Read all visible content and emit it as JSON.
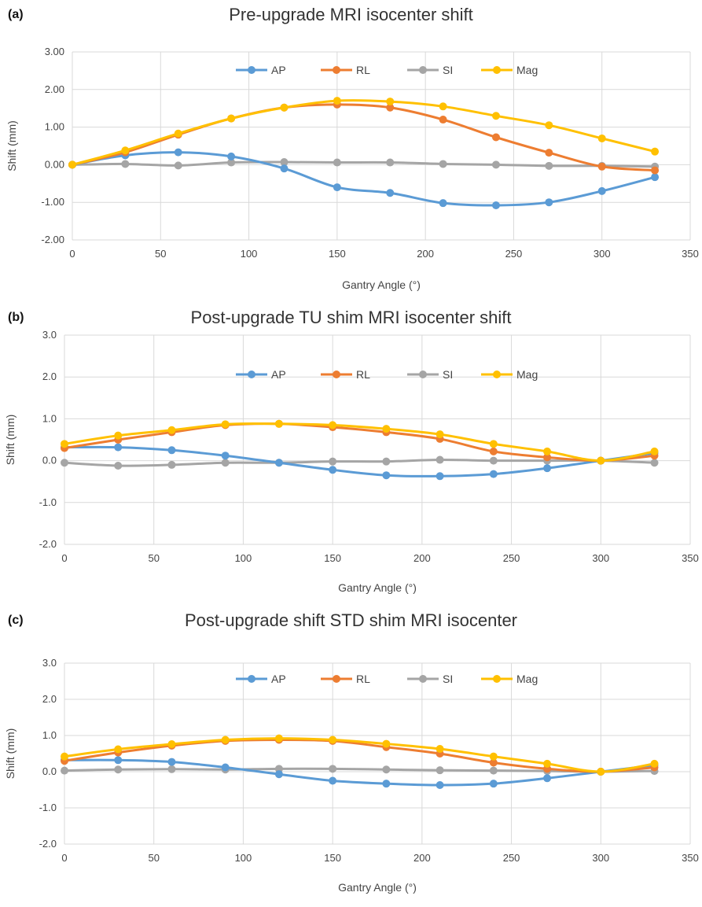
{
  "chart_data": [
    {
      "panel_label": "(a)",
      "type": "line",
      "title": "Pre-upgrade MRI isocenter shift",
      "xlabel": "Gantry Angle (°)",
      "ylabel": "Shift (mm)",
      "xlim": [
        0,
        350
      ],
      "ylim": [
        -2,
        3
      ],
      "xticks": [
        0,
        50,
        100,
        150,
        200,
        250,
        300,
        350
      ],
      "yticks": [
        -2,
        -1,
        0,
        1,
        2,
        3
      ],
      "ytick_labels": [
        "-2.00",
        "-1.00",
        "0.00",
        "1.00",
        "2.00",
        "3.00"
      ],
      "grid": true,
      "legend_position": "top",
      "x": [
        0,
        30,
        60,
        90,
        120,
        150,
        180,
        210,
        240,
        270,
        300,
        330
      ],
      "series": [
        {
          "name": "AP",
          "color": "#5B9BD5",
          "values": [
            0.0,
            0.25,
            0.33,
            0.22,
            -0.1,
            -0.6,
            -0.75,
            -1.02,
            -1.08,
            -1.0,
            -0.7,
            -0.33
          ]
        },
        {
          "name": "RL",
          "color": "#ED7D31",
          "values": [
            0.0,
            0.33,
            0.8,
            1.23,
            1.52,
            1.6,
            1.52,
            1.2,
            0.73,
            0.32,
            -0.05,
            -0.15
          ]
        },
        {
          "name": "SI",
          "color": "#A5A5A5",
          "values": [
            0.0,
            0.02,
            -0.02,
            0.06,
            0.07,
            0.06,
            0.06,
            0.02,
            0.0,
            -0.03,
            -0.03,
            -0.05
          ]
        },
        {
          "name": "Mag",
          "color": "#FFC000",
          "values": [
            0.0,
            0.38,
            0.83,
            1.23,
            1.52,
            1.7,
            1.68,
            1.55,
            1.3,
            1.05,
            0.7,
            0.35
          ]
        }
      ]
    },
    {
      "panel_label": "(b)",
      "type": "line",
      "title": "Post-upgrade TU shim MRI isocenter shift",
      "xlabel": "Gantry Angle (°)",
      "ylabel": "Shift (mm)",
      "xlim": [
        0,
        350
      ],
      "ylim": [
        -2,
        3
      ],
      "xticks": [
        0,
        50,
        100,
        150,
        200,
        250,
        300,
        350
      ],
      "yticks": [
        -2,
        -1,
        0,
        1,
        2,
        3
      ],
      "ytick_labels": [
        "-2.0",
        "-1.0",
        "0.0",
        "1.0",
        "2.0",
        "3.0"
      ],
      "grid": true,
      "legend_position": "top",
      "x": [
        0,
        30,
        60,
        90,
        120,
        150,
        180,
        210,
        240,
        270,
        300,
        330
      ],
      "series": [
        {
          "name": "AP",
          "color": "#5B9BD5",
          "values": [
            0.32,
            0.32,
            0.25,
            0.12,
            -0.05,
            -0.22,
            -0.35,
            -0.37,
            -0.32,
            -0.18,
            0.0,
            0.18
          ]
        },
        {
          "name": "RL",
          "color": "#ED7D31",
          "values": [
            0.3,
            0.5,
            0.68,
            0.85,
            0.88,
            0.8,
            0.68,
            0.52,
            0.22,
            0.08,
            0.0,
            0.12
          ]
        },
        {
          "name": "SI",
          "color": "#A5A5A5",
          "values": [
            -0.05,
            -0.12,
            -0.1,
            -0.05,
            -0.05,
            -0.02,
            -0.02,
            0.02,
            0.0,
            0.0,
            0.0,
            -0.05
          ]
        },
        {
          "name": "Mag",
          "color": "#FFC000",
          "values": [
            0.4,
            0.6,
            0.73,
            0.87,
            0.88,
            0.85,
            0.76,
            0.63,
            0.4,
            0.22,
            0.0,
            0.22
          ]
        }
      ]
    },
    {
      "panel_label": "(c)",
      "type": "line",
      "title": "Post-upgrade shift STD shim MRI isocenter",
      "xlabel": "Gantry Angle (°)",
      "ylabel": "Shift (mm)",
      "xlim": [
        0,
        350
      ],
      "ylim": [
        -2,
        3
      ],
      "xticks": [
        0,
        50,
        100,
        150,
        200,
        250,
        300,
        350
      ],
      "yticks": [
        -2,
        -1,
        0,
        1,
        2,
        3
      ],
      "ytick_labels": [
        "-2.0",
        "-1.0",
        "0.0",
        "1.0",
        "2.0",
        "3.0"
      ],
      "grid": true,
      "legend_position": "top",
      "x": [
        0,
        30,
        60,
        90,
        120,
        150,
        180,
        210,
        240,
        270,
        300,
        330
      ],
      "series": [
        {
          "name": "AP",
          "color": "#5B9BD5",
          "values": [
            0.32,
            0.32,
            0.27,
            0.12,
            -0.07,
            -0.25,
            -0.33,
            -0.37,
            -0.33,
            -0.18,
            0.0,
            0.18
          ]
        },
        {
          "name": "RL",
          "color": "#ED7D31",
          "values": [
            0.3,
            0.53,
            0.72,
            0.85,
            0.88,
            0.85,
            0.68,
            0.5,
            0.25,
            0.08,
            0.0,
            0.12
          ]
        },
        {
          "name": "SI",
          "color": "#A5A5A5",
          "values": [
            0.03,
            0.06,
            0.07,
            0.06,
            0.08,
            0.08,
            0.06,
            0.04,
            0.03,
            0.02,
            0.0,
            0.02
          ]
        },
        {
          "name": "Mag",
          "color": "#FFC000",
          "values": [
            0.42,
            0.62,
            0.76,
            0.88,
            0.92,
            0.88,
            0.77,
            0.63,
            0.42,
            0.22,
            0.0,
            0.22
          ]
        }
      ]
    }
  ]
}
